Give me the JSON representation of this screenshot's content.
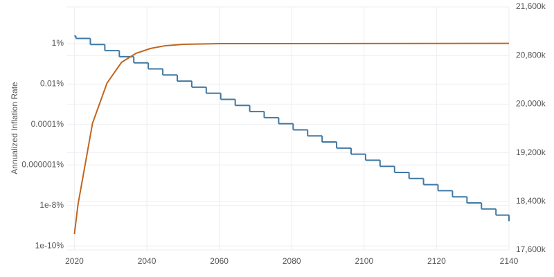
{
  "chart_data": {
    "type": "line",
    "y_axis_label": "Annualized Inflation Rate",
    "xlim": [
      2018,
      2140
    ],
    "xticks": [
      2020,
      2040,
      2060,
      2080,
      2100,
      2120,
      2140
    ],
    "ylim": [
      6.3e-11,
      65
    ],
    "ylog": true,
    "yticks": [
      {
        "value": 1,
        "label": "1%"
      },
      {
        "value": 0.01,
        "label": "0.01%"
      },
      {
        "value": 0.0001,
        "label": "0.0001%"
      },
      {
        "value": 1e-06,
        "label": "0.000001%"
      },
      {
        "value": 1e-08,
        "label": "1e-8%"
      },
      {
        "value": 1e-10,
        "label": "1e-10%"
      }
    ],
    "y2lim": [
      17600,
      21600
    ],
    "y2ticks": [
      {
        "value": 21600,
        "label": "21,600k"
      },
      {
        "value": 20800,
        "label": "20,800k"
      },
      {
        "value": 20000,
        "label": "20,000k"
      },
      {
        "value": 19200,
        "label": "19,200k"
      },
      {
        "value": 18400,
        "label": "18,400k"
      },
      {
        "value": 17600,
        "label": "17,600k"
      }
    ],
    "grid": true,
    "series": [
      {
        "color": "#3f78a3",
        "shape": "hv",
        "x": [
          2020,
          2020.4,
          2024.4,
          2028.4,
          2032.4,
          2036.4,
          2040.4,
          2044.4,
          2048.4,
          2052.4,
          2056.4,
          2060.4,
          2064.4,
          2068.4,
          2072.4,
          2076.4,
          2080.4,
          2084.4,
          2088.4,
          2092.4,
          2096.4,
          2100.4,
          2104.4,
          2108.4,
          2112.4,
          2116.4,
          2120.4,
          2124.4,
          2128.4,
          2132.4,
          2136.4,
          2140
        ],
        "values": [
          2.4,
          1.8,
          0.9,
          0.45,
          0.225,
          0.1125,
          0.05625,
          0.028125,
          0.0140625,
          0.00703,
          0.00352,
          0.00176,
          0.000879,
          0.000439,
          0.00022,
          0.00011,
          5.49e-05,
          2.75e-05,
          1.37e-05,
          6.87e-06,
          3.43e-06,
          1.72e-06,
          8.58e-07,
          4.29e-07,
          2.15e-07,
          1.07e-07,
          5.36e-08,
          2.68e-08,
          1.34e-08,
          6.7e-09,
          3.35e-09,
          1.68e-09
        ]
      },
      {
        "color": "#c0651e",
        "axis": "y2",
        "x": [
          2020,
          2021,
          2025,
          2029,
          2033,
          2037,
          2041,
          2045,
          2050,
          2060,
          2140
        ],
        "values": [
          17862,
          18352,
          19685,
          20346,
          20688,
          20836,
          20916,
          20961,
          20984,
          20996,
          21000
        ]
      }
    ]
  }
}
